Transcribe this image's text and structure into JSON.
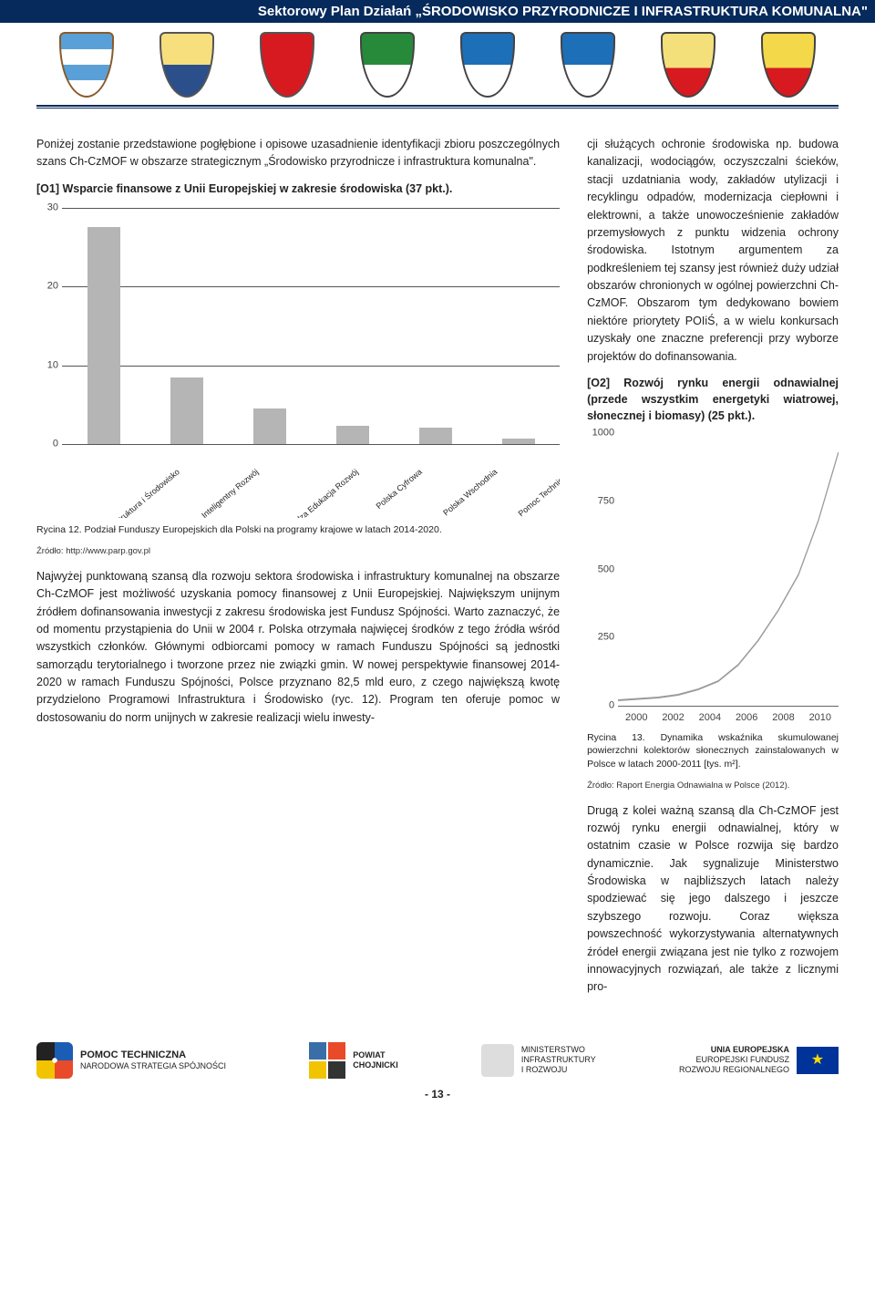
{
  "header": {
    "title": "Sektorowy Plan Działań „ŚRODOWISKO PRZYRODNICZE I INFRASTRUKTURA KOMUNALNA\""
  },
  "left": {
    "intro": "Poniżej zostanie przedstawione pogłębione i opisowe uzasadnienie identyfikacji zbioru poszczególnych szans Ch-CzMOF w obszarze strategicznym „Środowisko przyrodnicze i infrastruktura komunalna\".",
    "h1": "[O1] Wsparcie finansowe z Unii Europejskiej w zakresie środowiska (37 pkt.).",
    "chart1_caption": "Rycina 12. Podział Funduszy Europejskich dla Polski na programy krajowe w latach 2014-2020.",
    "chart1_source": "Źródło: http://www.parp.gov.pl",
    "para2": "Najwyżej punktowaną szansą dla rozwoju sektora środowiska i infrastruktury komunalnej na obszarze Ch-CzMOF jest możliwość uzyskania pomocy finansowej z Unii Europejskiej. Największym unijnym źródłem dofinansowania inwestycji z zakresu środowiska jest Fundusz Spójności. Warto zaznaczyć, że od momentu przystąpienia do Unii w 2004 r. Polska otrzymała najwięcej środków z tego źródła wśród wszystkich członków. Głównymi odbiorcami pomocy w ramach Funduszu Spójności są jednostki samorządu terytorialnego i tworzone przez nie związki gmin. W nowej perspektywie finansowej 2014-2020 w ramach Funduszu Spójności, Polsce przyznano 82,5 mld euro, z czego największą kwotę przydzielono Programowi Infrastruktura i Środowisko (ryc. 12). Program ten oferuje pomoc w dostosowaniu do norm unijnych w zakresie realizacji wielu inwesty-"
  },
  "right": {
    "para1": "cji służących ochronie środowiska np. budowa kanalizacji, wodociągów, oczyszczalni ścieków, stacji uzdatniania wody, zakładów utylizacji i recyklingu odpadów, modernizacja ciepłowni i elektrowni, a także unowocześnienie zakładów przemysłowych z punktu widzenia ochrony środowiska. Istotnym argumentem za podkreśleniem tej szansy jest również duży udział obszarów chronionych w ogólnej powierzchni Ch-CzMOF. Obszarom tym dedykowano bowiem niektóre priorytety POIiŚ, a w wielu konkursach uzyskały one znaczne preferencji przy wyborze projektów do dofinansowania.",
    "h2": "[O2] Rozwój rynku energii odnawialnej (przede wszystkim energetyki wiatrowej, słonecznej i biomasy) (25 pkt.).",
    "chart2_caption": "Rycina 13. Dynamika wskaźnika skumulowanej powierzchni kolektorów słonecznych zainstalowanych w Polsce w latach 2000-2011 [tys. m²].",
    "chart2_source": "Źródło: Raport Energia Odnawialna w Polsce (2012).",
    "para2": "Drugą z kolei ważną szansą dla Ch-CzMOF jest rozwój rynku energii odnawialnej, który w ostatnim czasie w Polsce rozwija się bardzo dynamicznie. Jak sygnalizuje Ministerstwo Środowiska w najbliższych latach należy spodziewać się jego dalszego i jeszcze szybszego rozwoju. Coraz większa powszechność wykorzystywania alternatywnych źródeł energii związana jest nie tylko z rozwojem innowacyjnych rozwiązań, ale także z licznymi pro-"
  },
  "barchart": {
    "type": "bar",
    "ymax": 30,
    "yticks": [
      0,
      10,
      20,
      30
    ],
    "categories": [
      "Infrastruktura i Środowisko",
      "Inteligentny Rozwój",
      "Wiedza Edukacja Rozwój",
      "Polska Cyfrowa",
      "Polska Wschodnia",
      "Pomoc Techniczna"
    ],
    "values": [
      27.5,
      8.5,
      4.5,
      2.3,
      2.1,
      0.7
    ],
    "bar_color": "#b5b5b5",
    "axis_color": "#555555",
    "label_fontsize": 9
  },
  "linechart": {
    "type": "line",
    "ymax": 1000,
    "yticks": [
      0,
      250,
      500,
      750,
      1000
    ],
    "xticks": [
      2000,
      2002,
      2004,
      2006,
      2008,
      2010
    ],
    "xmin": 2000,
    "xmax": 2011,
    "points": [
      {
        "x": 2000,
        "y": 20
      },
      {
        "x": 2001,
        "y": 25
      },
      {
        "x": 2002,
        "y": 30
      },
      {
        "x": 2003,
        "y": 40
      },
      {
        "x": 2004,
        "y": 60
      },
      {
        "x": 2005,
        "y": 90
      },
      {
        "x": 2006,
        "y": 150
      },
      {
        "x": 2007,
        "y": 240
      },
      {
        "x": 2008,
        "y": 350
      },
      {
        "x": 2009,
        "y": 480
      },
      {
        "x": 2010,
        "y": 680
      },
      {
        "x": 2011,
        "y": 930
      }
    ],
    "line_color": "#9a9a9a",
    "line_width": 2,
    "axis_color": "#666666"
  },
  "footer": {
    "logo1_top": "POMOC TECHNICZNA",
    "logo1_bot": "NARODOWA STRATEGIA SPÓJNOŚCI",
    "logo2_top": "POWIAT",
    "logo2_bot": "CHOJNICKI",
    "logo3_top": "MINISTERSTWO",
    "logo3_mid": "INFRASTRUKTURY",
    "logo3_bot": "I ROZWOJU",
    "logo4_top": "UNIA EUROPEJSKA",
    "logo4_mid": "EUROPEJSKI FUNDUSZ",
    "logo4_bot": "ROZWOJU REGIONALNEGO",
    "eu_stars": "★",
    "page": "- 13 -"
  }
}
